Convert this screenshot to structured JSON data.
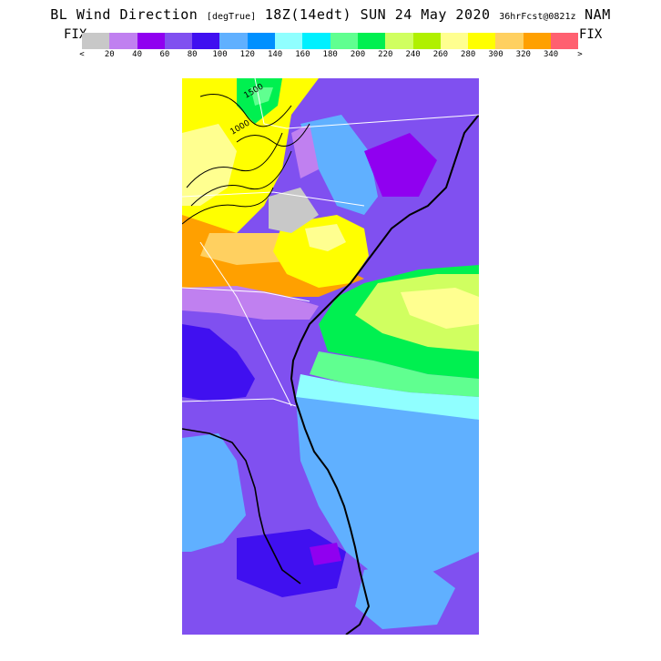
{
  "title": {
    "main": "BL Wind Direction",
    "units": "[degTrue]",
    "time": "18Z(14edt) SUN 24 May 2020",
    "forecast": "36hrFcst@0821z",
    "model": "NAM"
  },
  "legend": {
    "left_label": "FIX",
    "right_label": "FIX",
    "lt_marker": "<",
    "gt_marker": ">",
    "ticks": [
      "20",
      "40",
      "60",
      "80",
      "100",
      "120",
      "140",
      "160",
      "180",
      "200",
      "220",
      "240",
      "260",
      "280",
      "300",
      "320",
      "340"
    ],
    "colors": [
      "#c8c8c8",
      "#c080f0",
      "#9000f0",
      "#8050f0",
      "#4010f0",
      "#60b0ff",
      "#0090ff",
      "#90ffff",
      "#00f0ff",
      "#60ff90",
      "#00f050",
      "#d0ff60",
      "#b0f000",
      "#ffff90",
      "#ffff00",
      "#ffd060",
      "#ffa000",
      "#ff6070"
    ]
  },
  "map": {
    "contour_labels": [
      "1000",
      "1500"
    ]
  }
}
